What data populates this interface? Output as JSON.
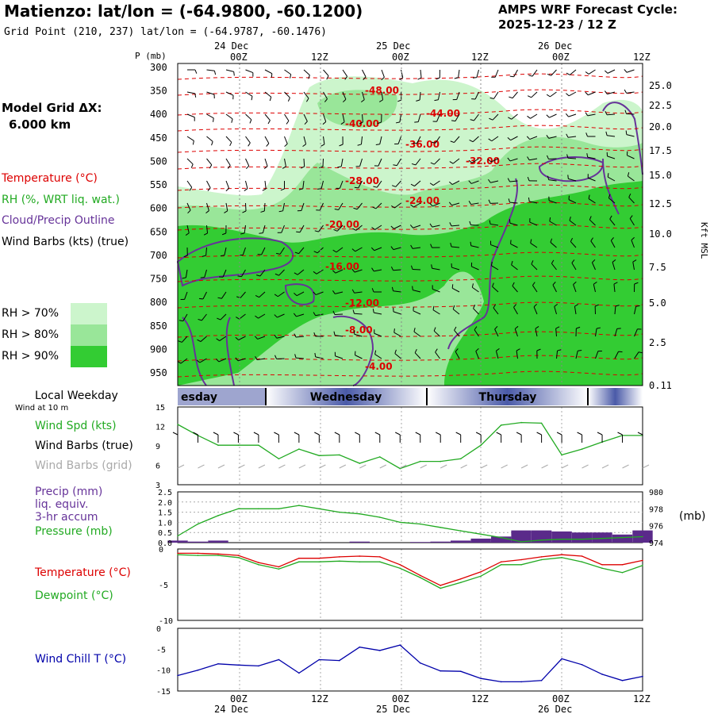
{
  "header": {
    "title": "Matienzo:  lat/lon = (-64.9800, -60.1200)",
    "subtitle": "Grid Point (210, 237) lat/lon = (-64.9787, -60.1476)",
    "cycle_line1": "AMPS WRF Forecast Cycle:",
    "cycle_line2": "2025-12-23 / 12  Z",
    "grid_label": "Model Grid ΔX:",
    "grid_value": "6.000 km"
  },
  "colors": {
    "temperature": "#dd0000",
    "rh": "#22aa22",
    "cloud": "#663399",
    "rh70": "#ccf5cc",
    "rh80": "#99e699",
    "rh90": "#33cc33",
    "windchill": "#0000aa",
    "precip": "#5a2a8a"
  },
  "legend": {
    "temperature": "Temperature (°C)",
    "rh": "RH (%, WRT liq. wat.)",
    "cloud": "Cloud/Precip Outline",
    "wind": "Wind Barbs (kts) (true)",
    "rh70": "RH > 70%",
    "rh80": "RH > 80%",
    "rh90": "RH > 90%",
    "local_weekday": "Local Weekday",
    "wind10m": "Wind at 10 m",
    "wspd": "Wind Spd (kts)",
    "wbarb_true": "Wind Barbs (true)",
    "wbarb_grid": "Wind Barbs (grid)",
    "precip1": "Precip (mm)",
    "precip2": "liq. equiv.",
    "precip3": "3-hr accum",
    "pressure": "Pressure (mb)",
    "pressure_unit": "(mb)",
    "temp2": "Temperature (°C)",
    "dewpoint": "Dewpoint (°C)",
    "windchill": "Wind Chill T (°C)"
  },
  "chart_data": [
    {
      "type": "heatmap",
      "name": "cross-section",
      "ylabel": "P (mb)",
      "y2label": "Kft MSL",
      "pressure_ticks": [
        300,
        350,
        400,
        450,
        500,
        550,
        600,
        650,
        700,
        750,
        800,
        850,
        900,
        950
      ],
      "height_ticks": [
        "25.0",
        "22.5",
        "20.0",
        "17.5",
        "15.0",
        "12.5",
        "10.0",
        "7.5",
        "5.0",
        "2.5",
        "0.11"
      ],
      "time_top": {
        "labels": [
          "00Z",
          "12Z",
          "00Z",
          "12Z",
          "00Z",
          "12Z"
        ],
        "dates": [
          "24 Dec",
          "25 Dec",
          "26 Dec"
        ]
      },
      "temperature_labels": [
        "-48.00",
        "-44.00",
        "-40.00",
        "-36.00",
        "-32.00",
        "-28.00",
        "-24.00",
        "-20.00",
        "-16.00",
        "-12.00",
        "-8.00",
        "-4.00"
      ]
    },
    {
      "type": "line",
      "name": "weekday",
      "days": [
        "esday",
        "Wednesday",
        "Thursday"
      ]
    },
    {
      "type": "line",
      "name": "wind speed",
      "ylim": [
        3,
        15
      ],
      "yticks": [
        "15",
        "12",
        "9",
        "6",
        "3"
      ],
      "values": [
        12.3,
        10.6,
        9.1,
        9.1,
        9.1,
        7.0,
        8.5,
        7.5,
        7.6,
        6.3,
        7.3,
        5.5,
        6.6,
        6.6,
        7.0,
        9.1,
        12.2,
        12.6,
        12.5,
        7.6,
        8.5,
        9.6,
        10.6,
        10.6
      ]
    },
    {
      "type": "bar",
      "name": "precip and pressure",
      "ylim": [
        0,
        2.5
      ],
      "yticks": [
        "2.5",
        "2.0",
        "1.5",
        "1.0",
        "0.5",
        "0.0"
      ],
      "y2ticks": [
        "980",
        "978",
        "976",
        "974"
      ],
      "y2lim": [
        974,
        980
      ],
      "precip": [
        0.1,
        0.05,
        0.1,
        0,
        0,
        0,
        0,
        0,
        0,
        0.05,
        0,
        0,
        0.03,
        0.05,
        0.1,
        0.2,
        0.3,
        0.6,
        0.6,
        0.55,
        0.5,
        0.5,
        0.4,
        0.6
      ],
      "pressure": [
        974.8,
        976.2,
        977.2,
        978.0,
        978.0,
        978.0,
        978.4,
        978.0,
        977.6,
        977.4,
        977.0,
        976.4,
        976.2,
        975.8,
        975.4,
        975.0,
        974.6,
        974.1,
        974.3,
        974.4,
        974.4,
        974.5,
        974.6,
        974.7
      ]
    },
    {
      "type": "line",
      "name": "temperature dewpoint",
      "ylim": [
        -10,
        0
      ],
      "yticks": [
        "0",
        "-5",
        "-10"
      ],
      "series": [
        {
          "name": "Temperature (°C)",
          "values": [
            -0.6,
            -0.6,
            -0.7,
            -0.9,
            -1.9,
            -2.5,
            -1.3,
            -1.3,
            -1.1,
            -1.0,
            -1.1,
            -2.2,
            -3.7,
            -5.1,
            -4.2,
            -3.2,
            -1.8,
            -1.5,
            -1.1,
            -0.8,
            -1.0,
            -2.2,
            -2.2,
            -1.6
          ]
        },
        {
          "name": "Dewpoint (°C)",
          "values": [
            -0.8,
            -0.9,
            -0.9,
            -1.2,
            -2.2,
            -2.8,
            -1.8,
            -1.8,
            -1.7,
            -1.8,
            -1.8,
            -2.7,
            -4.0,
            -5.5,
            -4.7,
            -3.8,
            -2.2,
            -2.2,
            -1.5,
            -1.2,
            -1.8,
            -2.7,
            -3.3,
            -2.3
          ]
        }
      ]
    },
    {
      "type": "line",
      "name": "wind chill",
      "ylim": [
        -15,
        0
      ],
      "yticks": [
        "0",
        "-5",
        "-10",
        "-15"
      ],
      "values": [
        -11.3,
        -10.0,
        -8.5,
        -8.8,
        -9.0,
        -7.5,
        -10.7,
        -7.5,
        -7.7,
        -4.5,
        -5.3,
        -4.0,
        -8.3,
        -10.2,
        -10.3,
        -12.0,
        -12.8,
        -12.8,
        -12.5,
        -7.3,
        -8.7,
        -11.0,
        -12.5,
        -11.5
      ]
    },
    {
      "type": "line",
      "name": "time axis bottom",
      "labels": [
        "00Z",
        "12Z",
        "00Z",
        "12Z",
        "00Z",
        "12Z"
      ],
      "dates": [
        "24 Dec",
        "25 Dec",
        "26 Dec"
      ]
    }
  ]
}
